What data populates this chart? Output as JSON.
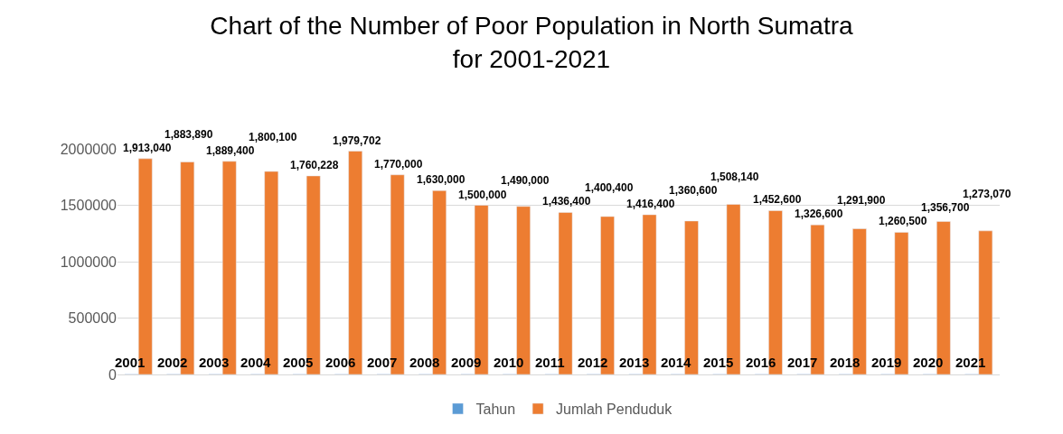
{
  "chart_data": {
    "type": "bar",
    "title": "Chart of the Number of Poor Population in North Sumatra\nfor 2001-2021",
    "categories": [
      null,
      null,
      null,
      null,
      null,
      null,
      null,
      null,
      null,
      null,
      null,
      null,
      null,
      null,
      null,
      null,
      null,
      null,
      null,
      null,
      null
    ],
    "series": [
      {
        "name": "Tahun",
        "color": "#5b9bd5",
        "values": [
          2001,
          2002,
          2003,
          2004,
          2005,
          2006,
          2007,
          2008,
          2009,
          2010,
          2011,
          2012,
          2013,
          2014,
          2015,
          2016,
          2017,
          2018,
          2019,
          2020,
          2021
        ]
      },
      {
        "name": "Jumlah Penduduk",
        "color": "#ed7d31",
        "values": [
          1913040,
          1883890,
          1889400,
          1800100,
          1760228,
          1979702,
          1770000,
          1630000,
          1500000,
          1490000,
          1436400,
          1400400,
          1416400,
          1360600,
          1508140,
          1452600,
          1326600,
          1291900,
          1260500,
          1356700,
          1273070
        ],
        "value_labels": [
          "1,913,040",
          "1,883,890",
          "1,889,400",
          "1,800,100",
          "1,760,228",
          "1,979,702",
          "1,770,000",
          "1,630,000",
          "1,500,000",
          "1,490,000",
          "1,436,400",
          "1,400,400",
          "1,416,400",
          "1,360,600",
          "1,508,140",
          "1,452,600",
          "1,326,600",
          "1,291,900",
          "1,260,500",
          "1,356,700",
          "1,273,070"
        ]
      }
    ],
    "ylim": [
      0,
      2000000
    ],
    "yticks": [
      0,
      500000,
      1000000,
      1500000,
      2000000
    ],
    "grid": "y",
    "legend": "bottom",
    "data_labels": true
  }
}
